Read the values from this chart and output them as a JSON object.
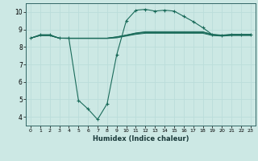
{
  "xlabel": "Humidex (Indice chaleur)",
  "bg_color": "#cce8e4",
  "grid_color": "#bbddda",
  "line_color": "#1a6b5a",
  "xlim": [
    -0.5,
    23.5
  ],
  "ylim": [
    3.5,
    10.5
  ],
  "xticks": [
    0,
    1,
    2,
    3,
    4,
    5,
    6,
    7,
    8,
    9,
    10,
    11,
    12,
    13,
    14,
    15,
    16,
    17,
    18,
    19,
    20,
    21,
    22,
    23
  ],
  "yticks": [
    4,
    5,
    6,
    7,
    8,
    9,
    10
  ],
  "lines": [
    {
      "x": [
        0,
        1,
        2,
        3,
        4,
        5,
        6,
        7,
        8,
        9,
        10,
        11,
        12,
        13,
        14,
        15,
        16,
        17,
        18,
        19,
        20,
        21,
        22,
        23
      ],
      "y": [
        8.5,
        8.7,
        8.7,
        8.5,
        8.5,
        4.95,
        4.45,
        3.85,
        4.75,
        7.55,
        9.5,
        10.1,
        10.15,
        10.05,
        10.1,
        10.05,
        9.75,
        9.45,
        9.1,
        8.7,
        8.65,
        8.7,
        8.7,
        8.7
      ],
      "marker": true
    },
    {
      "x": [
        0,
        1,
        2,
        3,
        4,
        5,
        6,
        7,
        8,
        9,
        10,
        11,
        12,
        13,
        14,
        15,
        16,
        17,
        18,
        19,
        20,
        21,
        22,
        23
      ],
      "y": [
        8.5,
        8.65,
        8.65,
        8.5,
        8.48,
        8.48,
        8.48,
        8.48,
        8.48,
        8.52,
        8.62,
        8.72,
        8.78,
        8.78,
        8.78,
        8.78,
        8.78,
        8.78,
        8.78,
        8.65,
        8.62,
        8.65,
        8.65,
        8.65
      ],
      "marker": false
    },
    {
      "x": [
        0,
        1,
        2,
        3,
        4,
        5,
        6,
        7,
        8,
        9,
        10,
        11,
        12,
        13,
        14,
        15,
        16,
        17,
        18,
        19,
        20,
        21,
        22,
        23
      ],
      "y": [
        8.5,
        8.65,
        8.65,
        8.5,
        8.5,
        8.5,
        8.5,
        8.5,
        8.5,
        8.55,
        8.65,
        8.75,
        8.82,
        8.82,
        8.82,
        8.82,
        8.82,
        8.82,
        8.82,
        8.68,
        8.65,
        8.68,
        8.68,
        8.68
      ],
      "marker": false
    },
    {
      "x": [
        0,
        1,
        2,
        3,
        4,
        5,
        6,
        7,
        8,
        9,
        10,
        11,
        12,
        13,
        14,
        15,
        16,
        17,
        18,
        19,
        20,
        21,
        22,
        23
      ],
      "y": [
        8.5,
        8.67,
        8.67,
        8.5,
        8.5,
        8.5,
        8.5,
        8.5,
        8.5,
        8.57,
        8.67,
        8.78,
        8.85,
        8.85,
        8.85,
        8.85,
        8.85,
        8.85,
        8.85,
        8.7,
        8.67,
        8.7,
        8.7,
        8.7
      ],
      "marker": false
    },
    {
      "x": [
        0,
        1,
        2,
        3,
        4,
        5,
        6,
        7,
        8,
        9,
        10,
        11,
        12,
        13,
        14,
        15,
        16,
        17,
        18,
        19,
        20,
        21,
        22,
        23
      ],
      "y": [
        8.5,
        8.68,
        8.68,
        8.5,
        8.5,
        8.5,
        8.5,
        8.5,
        8.5,
        8.58,
        8.68,
        8.8,
        8.87,
        8.87,
        8.87,
        8.87,
        8.87,
        8.87,
        8.87,
        8.72,
        8.68,
        8.72,
        8.72,
        8.72
      ],
      "marker": false
    }
  ]
}
